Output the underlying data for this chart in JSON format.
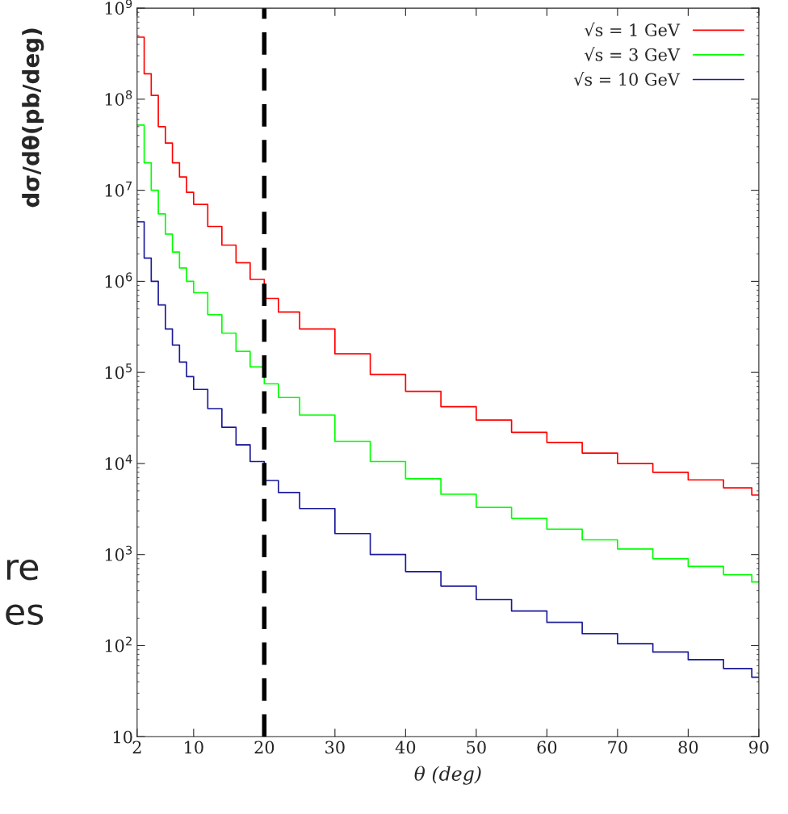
{
  "chart_data": {
    "type": "step",
    "xlabel": "θ (deg)",
    "ylabel": "dσ/dθ(pb/deg)",
    "log": "y",
    "xlim": [
      2,
      90
    ],
    "xticks": [
      2,
      10,
      20,
      30,
      40,
      50,
      60,
      70,
      80,
      90
    ],
    "ylim": [
      10,
      1000000000
    ],
    "yticks": [
      10,
      {
        "value": 100,
        "label": "10$^{2}$"
      },
      {
        "value": 1000,
        "label": "10$^{3}$"
      },
      {
        "value": 10000,
        "label": "10$^{4}$"
      },
      {
        "value": 100000,
        "label": "10$^{5}$"
      },
      {
        "value": 1000000,
        "label": "10$^{6}$"
      },
      {
        "value": 10000000,
        "label": "10$^{7}$"
      },
      {
        "value": 100000000,
        "label": "10$^{8}$"
      },
      {
        "value": 1000000000,
        "label": "10$^{9}$"
      }
    ],
    "grid": false,
    "legend": "top right",
    "line_style": "solid",
    "x": [
      2,
      3,
      4,
      5,
      6,
      7,
      8,
      9,
      10,
      12,
      14,
      16,
      18,
      20,
      22,
      25,
      30,
      35,
      40,
      45,
      50,
      55,
      60,
      65,
      70,
      75,
      80,
      85,
      89,
      90
    ],
    "series": [
      {
        "name": "√s = 1 GeV",
        "color": "#ff0000",
        "values": [
          480000000,
          190000000,
          110000000,
          50000000,
          33000000,
          20000000,
          14000000,
          9500000,
          7000000,
          4000000,
          2500000,
          1600000,
          1050000,
          650000,
          460000,
          300000,
          160000,
          95000,
          62000,
          42000,
          30000,
          22000,
          17000,
          13000,
          10000,
          8000,
          6600,
          5400,
          4500,
          4500
        ]
      },
      {
        "name": "√s = 3 GeV",
        "color": "#00ff00",
        "values": [
          52000000,
          20000000,
          10000000,
          5500000,
          3300000,
          2100000,
          1400000,
          1000000,
          750000,
          430000,
          270000,
          170000,
          115000,
          75000,
          53000,
          34000,
          17500,
          10500,
          6800,
          4600,
          3300,
          2500,
          1900,
          1450,
          1150,
          900,
          740,
          600,
          500,
          500
        ]
      },
      {
        "name": "√s = 10 GeV",
        "color": "#1a1a9a",
        "values": [
          4500000,
          1800000,
          1000000,
          550000,
          300000,
          200000,
          130000,
          90000,
          65000,
          40000,
          25000,
          16000,
          10500,
          6500,
          4800,
          3200,
          1700,
          1000,
          650,
          450,
          320,
          240,
          180,
          135,
          105,
          85,
          70,
          56,
          45,
          45
        ]
      }
    ],
    "ref_lines": [
      {
        "axis": "x",
        "value": 20,
        "color": "#000000",
        "line_style": "dashed"
      }
    ],
    "annotations": [
      "re",
      "es"
    ]
  }
}
